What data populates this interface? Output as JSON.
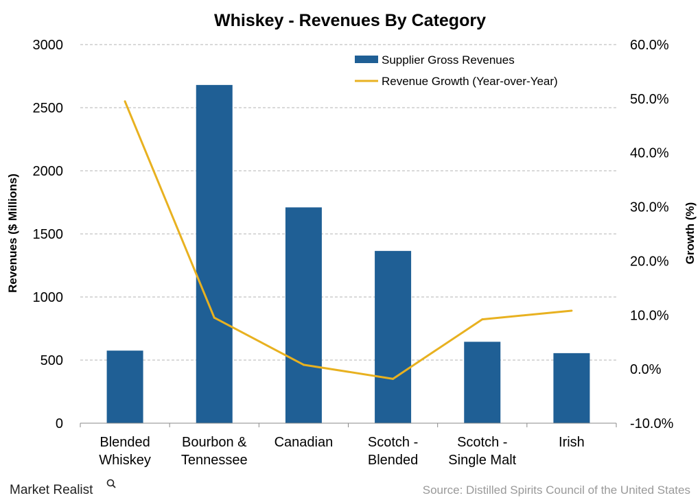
{
  "chart_data": {
    "type": "bar",
    "title": "Whiskey - Revenues By Category",
    "categories": [
      [
        "Blended",
        "Whiskey"
      ],
      [
        "Bourbon &",
        "Tennessee"
      ],
      [
        "Canadian"
      ],
      [
        "Scotch -",
        "Blended"
      ],
      [
        "Scotch -",
        "Single Malt"
      ],
      [
        "Irish"
      ]
    ],
    "series": [
      {
        "name": "Supplier Gross Revenues",
        "type": "bar",
        "axis": "left",
        "color": "#1f5f95",
        "values": [
          575,
          2680,
          1710,
          1365,
          645,
          555
        ]
      },
      {
        "name": "Revenue Growth (Year-over-Year)",
        "type": "line",
        "axis": "right",
        "color": "#e8b120",
        "values": [
          49.5,
          9.5,
          0.8,
          -1.8,
          9.2,
          10.8
        ]
      }
    ],
    "ylabel": "Revenues ($ Millions)",
    "ylim": [
      0,
      3000
    ],
    "yticks": [
      0,
      500,
      1000,
      1500,
      2000,
      2500,
      3000
    ],
    "y2label": "Growth (%)",
    "y2lim": [
      -10,
      60
    ],
    "y2ticks": [
      "-10.0%",
      "0.0%",
      "10.0%",
      "20.0%",
      "30.0%",
      "40.0%",
      "50.0%",
      "60.0%"
    ],
    "grid": true,
    "legend": "top-right"
  },
  "footer": {
    "brand": "Market Realist",
    "source": "Source: Distilled Spirits Council of the United States"
  }
}
